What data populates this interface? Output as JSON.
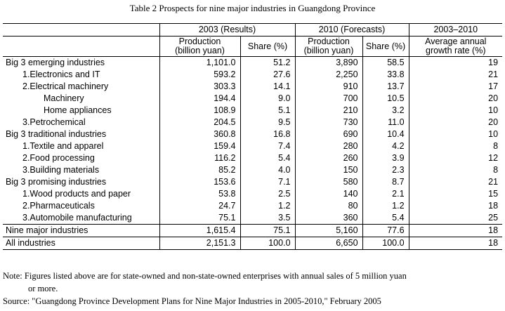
{
  "title": "Table 2 Prospects for nine major industries in Guangdong Province",
  "header": {
    "group_2003": "2003 (Results)",
    "group_2010": "2010 (Forecasts)",
    "group_growth": "2003–2010",
    "production_line1": "Production",
    "production_line2": "(billion yuan)",
    "share": "Share (%)",
    "growth_line1": "Average annual",
    "growth_line2": "growth rate (%)"
  },
  "rows": [
    {
      "label": "Big 3 emerging industries",
      "level": 0,
      "p2003": "1,101.0",
      "s2003": "51.2",
      "p2010": "3,890",
      "s2010": "58.5",
      "growth": "19"
    },
    {
      "label": "1.Electronics and IT",
      "level": 1,
      "p2003": "593.2",
      "s2003": "27.6",
      "p2010": "2,250",
      "s2010": "33.8",
      "growth": "21"
    },
    {
      "label": "2.Electrical machinery",
      "level": 1,
      "p2003": "303.3",
      "s2003": "14.1",
      "p2010": "910",
      "s2010": "13.7",
      "growth": "17"
    },
    {
      "label": "Machinery",
      "level": 2,
      "p2003": "194.4",
      "s2003": "9.0",
      "p2010": "700",
      "s2010": "10.5",
      "growth": "20"
    },
    {
      "label": "Home appliances",
      "level": 2,
      "p2003": "108.9",
      "s2003": "5.1",
      "p2010": "210",
      "s2010": "3.2",
      "growth": "10"
    },
    {
      "label": "3.Petrochemical",
      "level": 1,
      "p2003": "204.5",
      "s2003": "9.5",
      "p2010": "730",
      "s2010": "11.0",
      "growth": "20"
    },
    {
      "label": "Big 3 traditional industries",
      "level": 0,
      "p2003": "360.8",
      "s2003": "16.8",
      "p2010": "690",
      "s2010": "10.4",
      "growth": "10"
    },
    {
      "label": "1.Textile and apparel",
      "level": 1,
      "p2003": "159.4",
      "s2003": "7.4",
      "p2010": "280",
      "s2010": "4.2",
      "growth": "8"
    },
    {
      "label": "2.Food processing",
      "level": 1,
      "p2003": "116.2",
      "s2003": "5.4",
      "p2010": "260",
      "s2010": "3.9",
      "growth": "12"
    },
    {
      "label": "3.Building materials",
      "level": 1,
      "p2003": "85.2",
      "s2003": "4.0",
      "p2010": "150",
      "s2010": "2.3",
      "growth": "8"
    },
    {
      "label": "Big 3 promising industries",
      "level": 0,
      "p2003": "153.6",
      "s2003": "7.1",
      "p2010": "580",
      "s2010": "8.7",
      "growth": "21"
    },
    {
      "label": "1.Wood products and paper",
      "level": 1,
      "p2003": "53.8",
      "s2003": "2.5",
      "p2010": "140",
      "s2010": "2.1",
      "growth": "15"
    },
    {
      "label": "2.Pharmaceuticals",
      "level": 1,
      "p2003": "24.7",
      "s2003": "1.2",
      "p2010": "80",
      "s2010": "1.2",
      "growth": "18"
    },
    {
      "label": "3.Automobile manufacturing",
      "level": 1,
      "p2003": "75.1",
      "s2003": "3.5",
      "p2010": "360",
      "s2010": "5.4",
      "growth": "25"
    },
    {
      "label": "Nine major industries",
      "level": 0,
      "p2003": "1,615.4",
      "s2003": "75.1",
      "p2010": "5,160",
      "s2010": "77.6",
      "growth": "18"
    },
    {
      "label": "All industries",
      "level": 0,
      "p2003": "2,151.3",
      "s2003": "100.0",
      "p2010": "6,650",
      "s2010": "100.0",
      "growth": "18"
    }
  ],
  "notes": {
    "note_line1": "Note: Figures listed above are for state-owned and non-state-owned enterprises with annual sales of 5 million yuan",
    "note_line2": "or more.",
    "source": "Source: \"Guangdong Province Development Plans for Nine Major Industries in 2005-2010,\" February 2005"
  }
}
